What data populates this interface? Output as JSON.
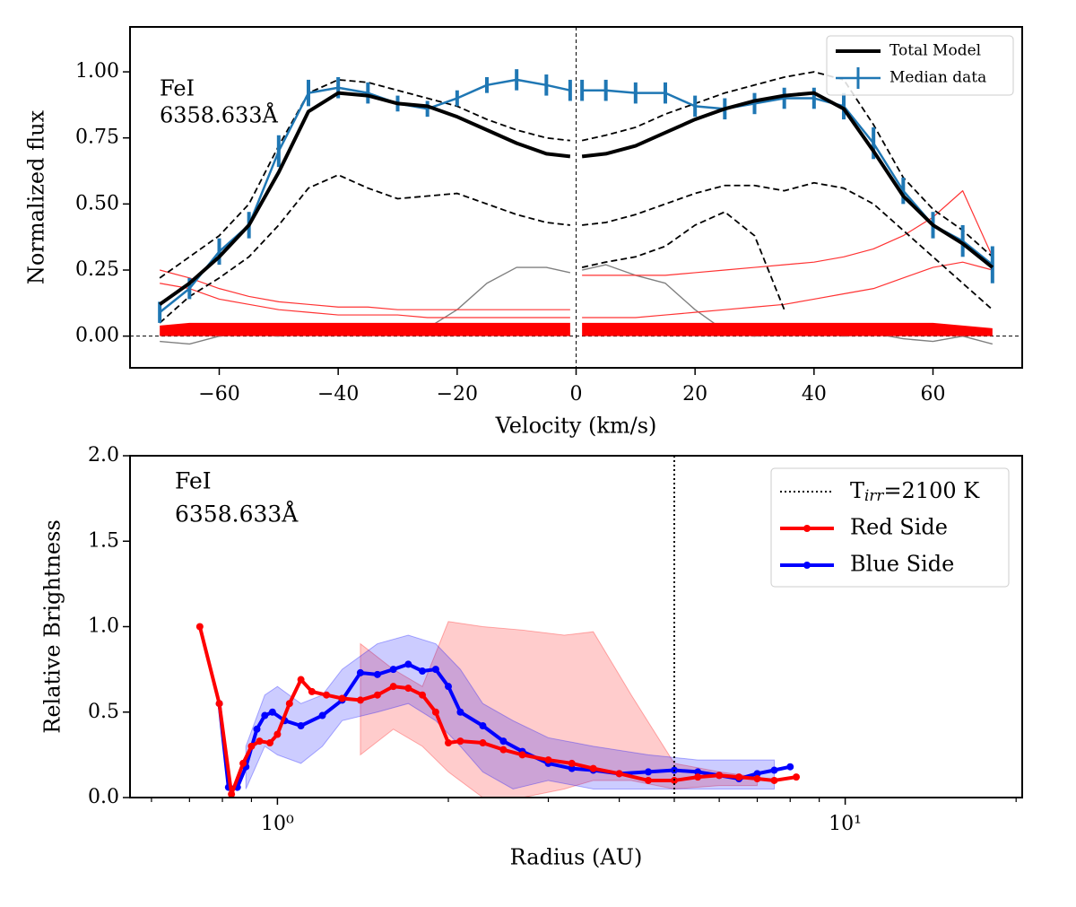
{
  "chart_data": [
    {
      "type": "line",
      "annotation": [
        "FeI",
        "6358.633Å"
      ],
      "xlabel": "Velocity (km/s)",
      "ylabel": "Normalized flux",
      "xlim": [
        -75,
        75
      ],
      "ylim": [
        -0.12,
        1.17
      ],
      "xticks": [
        {
          "value": -60,
          "label": "−60"
        },
        {
          "value": -40,
          "label": "−40"
        },
        {
          "value": -20,
          "label": "−20"
        },
        0,
        20,
        40,
        60
      ],
      "yticks": [
        {
          "value": 0,
          "label": "0.00"
        },
        {
          "value": 0.25,
          "label": "0.25"
        },
        {
          "value": 0.5,
          "label": "0.50"
        },
        {
          "value": 0.75,
          "label": "0.75"
        },
        {
          "value": 1,
          "label": "1.00"
        }
      ],
      "zero_lines": true,
      "legend": "upper right",
      "x": [
        -70,
        -65,
        -60,
        -55,
        -50,
        -45,
        -40,
        -35,
        -30,
        -25,
        -20,
        -15,
        -10,
        -5,
        -1,
        0,
        1,
        5,
        10,
        15,
        20,
        25,
        30,
        35,
        40,
        45,
        50,
        55,
        60,
        65,
        70
      ],
      "series": [
        {
          "name": "Total Model",
          "color": "#000000",
          "width": 4,
          "values": [
            0.12,
            0.2,
            0.3,
            0.42,
            0.62,
            0.85,
            0.92,
            0.91,
            0.88,
            0.87,
            0.83,
            0.78,
            0.73,
            0.69,
            0.68,
            null,
            0.68,
            0.69,
            0.72,
            0.77,
            0.82,
            0.86,
            0.89,
            0.91,
            0.92,
            0.86,
            0.7,
            0.53,
            0.42,
            0.35,
            0.26
          ]
        },
        {
          "name": "Median data",
          "color": "#1f77b4",
          "width": 2.5,
          "values": [
            0.09,
            0.18,
            0.32,
            0.42,
            0.7,
            0.92,
            0.94,
            0.92,
            0.88,
            0.86,
            0.9,
            0.95,
            0.97,
            0.95,
            0.93,
            null,
            0.93,
            0.93,
            0.92,
            0.92,
            0.87,
            0.86,
            0.88,
            0.9,
            0.9,
            0.87,
            0.73,
            0.55,
            0.42,
            0.36,
            0.27
          ],
          "errors": [
            0.04,
            0.04,
            0.05,
            0.05,
            0.06,
            0.05,
            0.04,
            0.04,
            0.03,
            0.03,
            0.03,
            0.03,
            0.04,
            0.04,
            0.04,
            null,
            0.04,
            0.04,
            0.04,
            0.04,
            0.04,
            0.04,
            0.04,
            0.04,
            0.04,
            0.05,
            0.06,
            0.05,
            0.05,
            0.06,
            0.07
          ]
        },
        {
          "color": "#000000",
          "width": 1.8,
          "dash": true,
          "values": [
            0.22,
            0.3,
            0.38,
            0.5,
            0.72,
            0.92,
            0.97,
            0.96,
            0.93,
            0.9,
            0.87,
            0.82,
            0.78,
            0.75,
            0.74,
            null,
            0.74,
            0.76,
            0.79,
            0.84,
            0.88,
            0.92,
            0.95,
            0.98,
            1.0,
            0.97,
            0.8,
            0.6,
            0.48,
            0.4,
            0.3
          ]
        },
        {
          "color": "#000000",
          "width": 1.8,
          "dash": true,
          "values": [
            0.05,
            0.15,
            0.22,
            0.3,
            0.42,
            0.56,
            0.61,
            0.56,
            0.52,
            0.53,
            0.54,
            0.5,
            0.46,
            0.43,
            0.42,
            null,
            0.42,
            0.43,
            0.46,
            0.5,
            0.54,
            0.57,
            0.57,
            0.55,
            0.58,
            0.56,
            0.5,
            0.4,
            0.3,
            0.2,
            0.1
          ]
        },
        {
          "color": "#000000",
          "width": 1.8,
          "dash": true,
          "values": [
            null,
            null,
            null,
            null,
            null,
            null,
            null,
            null,
            null,
            null,
            null,
            null,
            null,
            null,
            null,
            null,
            0.26,
            0.28,
            0.3,
            0.34,
            0.42,
            0.47,
            0.38,
            0.1,
            null,
            null,
            null,
            null,
            null,
            null,
            null
          ]
        },
        {
          "color": "#ff3333",
          "width": 1.2,
          "values": [
            0.25,
            0.22,
            0.18,
            0.15,
            0.13,
            0.12,
            0.11,
            0.11,
            0.1,
            0.1,
            0.1,
            0.1,
            0.1,
            0.1,
            0.1,
            null,
            0.23,
            0.23,
            0.23,
            0.23,
            0.24,
            0.25,
            0.26,
            0.27,
            0.28,
            0.3,
            0.33,
            0.38,
            0.45,
            0.55,
            0.3
          ]
        },
        {
          "color": "#ff3333",
          "width": 1.2,
          "values": [
            0.2,
            0.18,
            0.14,
            0.12,
            0.1,
            0.09,
            0.08,
            0.08,
            0.08,
            0.07,
            0.07,
            0.07,
            0.07,
            0.07,
            0.07,
            null,
            0.07,
            0.07,
            0.07,
            0.08,
            0.09,
            0.1,
            0.11,
            0.12,
            0.14,
            0.16,
            0.18,
            0.22,
            0.26,
            0.28,
            0.25
          ]
        },
        {
          "color": "#ff0000",
          "width": 1,
          "fill": true,
          "values": [
            0.04,
            0.05,
            0.05,
            0.05,
            0.05,
            0.05,
            0.05,
            0.05,
            0.05,
            0.05,
            0.05,
            0.05,
            0.05,
            0.05,
            0.05,
            null,
            0.05,
            0.05,
            0.05,
            0.05,
            0.05,
            0.05,
            0.05,
            0.05,
            0.05,
            0.05,
            0.05,
            0.05,
            0.05,
            0.04,
            0.03
          ]
        },
        {
          "color": "#808080",
          "width": 1.4,
          "values": [
            -0.02,
            -0.03,
            0.0,
            0.01,
            0.0,
            0.02,
            0.03,
            0.0,
            0.02,
            0.03,
            0.1,
            0.2,
            0.26,
            0.26,
            0.24,
            null,
            0.25,
            0.27,
            0.23,
            0.2,
            0.1,
            0.02,
            0.0,
            0.01,
            0.02,
            0.0,
            0.01,
            -0.01,
            -0.02,
            0.0,
            -0.03
          ]
        }
      ]
    },
    {
      "type": "line",
      "annotation": [
        "FeI",
        "6358.633Å"
      ],
      "xlabel": "Radius (AU)",
      "ylabel": "Relative Brightness",
      "log_x": true,
      "xlim": [
        0.55,
        20.5
      ],
      "ylim": [
        0,
        2
      ],
      "xticks": [
        {
          "value": 1,
          "label": "10⁰"
        },
        {
          "value": 10,
          "label": "10¹"
        }
      ],
      "xminor_ticks": [
        0.6,
        0.7,
        0.8,
        0.9,
        2,
        3,
        4,
        5,
        6,
        7,
        8,
        9,
        20
      ],
      "yticks": [
        {
          "value": 0,
          "label": "0.0"
        },
        {
          "value": 0.5,
          "label": "0.5"
        },
        {
          "value": 1,
          "label": "1.0"
        },
        {
          "value": 1.5,
          "label": "1.5"
        },
        {
          "value": 2,
          "label": "2.0"
        }
      ],
      "legend": "upper right",
      "vline": {
        "x": 5.0,
        "color": "#000000",
        "label": [
          "T",
          "irr",
          "=2100 K"
        ]
      },
      "bands": [
        {
          "color": "#ff0000",
          "x": [
            1.4,
            1.6,
            1.8,
            2.0,
            2.3,
            2.7,
            3.2,
            3.6,
            4.2,
            5.0,
            6,
            7
          ],
          "upper": [
            0.9,
            0.75,
            0.65,
            1.03,
            1.0,
            0.98,
            0.95,
            0.97,
            0.6,
            0.2,
            0.15,
            0.12
          ],
          "lower": [
            0.25,
            0.4,
            0.3,
            0.15,
            0.0,
            0.0,
            0.05,
            0.1,
            0.1,
            0.05,
            0.07,
            0.07
          ]
        },
        {
          "color": "#0000ff",
          "x": [
            0.88,
            0.95,
            1.0,
            1.1,
            1.2,
            1.3,
            1.5,
            1.7,
            1.9,
            2.1,
            2.3,
            2.6,
            3.0,
            3.6,
            4.5,
            5.5,
            7.5
          ],
          "upper": [
            0.3,
            0.6,
            0.65,
            0.55,
            0.6,
            0.75,
            0.9,
            0.95,
            0.9,
            0.75,
            0.55,
            0.45,
            0.35,
            0.3,
            0.25,
            0.22,
            0.22
          ],
          "lower": [
            0.05,
            0.3,
            0.25,
            0.2,
            0.3,
            0.45,
            0.5,
            0.55,
            0.45,
            0.3,
            0.15,
            0.05,
            0.1,
            0.05,
            0.05,
            0.05,
            0.05
          ]
        }
      ],
      "series": [
        {
          "name": "Red Side",
          "color": "#ff0000",
          "width": 4,
          "markers": true,
          "x": [
            0.73,
            0.79,
            0.83,
            0.87,
            0.9,
            0.93,
            0.97,
            1.0,
            1.05,
            1.1,
            1.15,
            1.22,
            1.3,
            1.4,
            1.5,
            1.6,
            1.7,
            1.8,
            1.9,
            2.0,
            2.1,
            2.3,
            2.5,
            2.7,
            3.0,
            3.3,
            3.6,
            4.0,
            4.5,
            5.0,
            5.5,
            6.0,
            6.5,
            7.0,
            7.5,
            8.2
          ],
          "values": [
            1.0,
            0.55,
            0.02,
            0.2,
            0.3,
            0.33,
            0.32,
            0.37,
            0.55,
            0.69,
            0.62,
            0.6,
            0.58,
            0.57,
            0.6,
            0.65,
            0.64,
            0.6,
            0.5,
            0.32,
            0.33,
            0.32,
            0.28,
            0.25,
            0.22,
            0.2,
            0.17,
            0.14,
            0.1,
            0.1,
            0.12,
            0.13,
            0.12,
            0.11,
            0.1,
            0.12
          ]
        },
        {
          "name": "Blue Side",
          "color": "#0000ff",
          "width": 4,
          "markers": true,
          "x": [
            0.79,
            0.82,
            0.85,
            0.88,
            0.92,
            0.95,
            0.98,
            1.03,
            1.1,
            1.2,
            1.3,
            1.4,
            1.5,
            1.6,
            1.7,
            1.8,
            1.9,
            2.0,
            2.1,
            2.3,
            2.5,
            2.7,
            3.0,
            3.3,
            3.6,
            4.0,
            4.5,
            5.0,
            5.5,
            6.0,
            6.5,
            7.0,
            7.5,
            8.0
          ],
          "values": [
            0.55,
            0.06,
            0.06,
            0.18,
            0.4,
            0.48,
            0.5,
            0.45,
            0.42,
            0.48,
            0.57,
            0.73,
            0.72,
            0.75,
            0.78,
            0.74,
            0.75,
            0.65,
            0.5,
            0.42,
            0.33,
            0.27,
            0.2,
            0.17,
            0.16,
            0.14,
            0.15,
            0.16,
            0.15,
            0.13,
            0.11,
            0.14,
            0.16,
            0.18
          ]
        }
      ]
    }
  ]
}
